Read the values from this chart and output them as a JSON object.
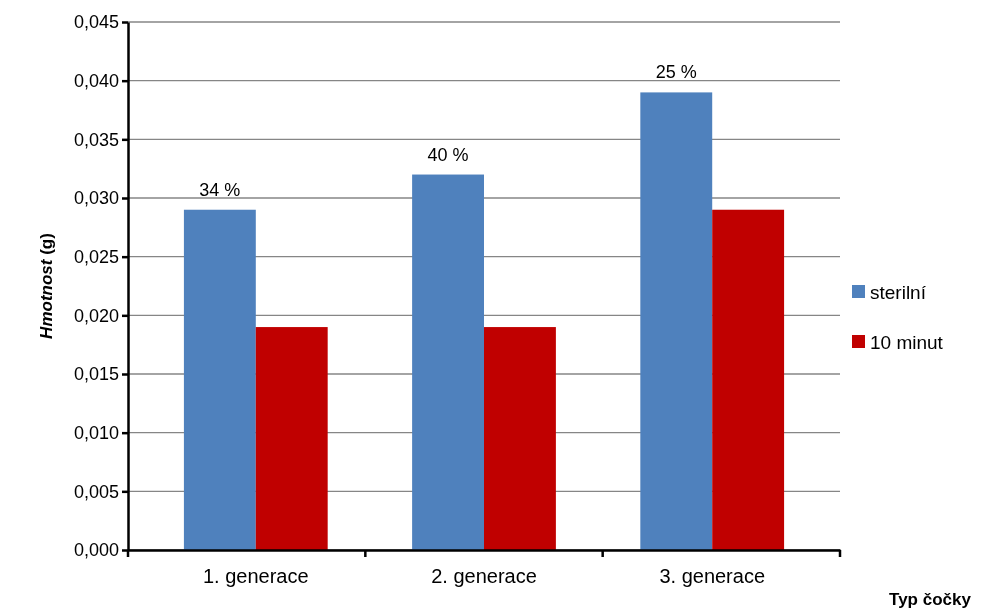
{
  "chart_data": {
    "type": "bar",
    "categories": [
      "1. generace",
      "2. generace",
      "3. generace"
    ],
    "series": [
      {
        "name": "sterilní",
        "color": "#4f81bd",
        "values": [
          0.029,
          0.032,
          0.039
        ]
      },
      {
        "name": "10 minut",
        "color": "#c00000",
        "values": [
          0.019,
          0.019,
          0.029
        ]
      }
    ],
    "ylabel": "Hmotnost (g)",
    "xlabel": "Typ čočky",
    "ylim": [
      0,
      0.045
    ],
    "yticks": [
      {
        "value": 0,
        "label": "0,000"
      },
      {
        "value": 0.005,
        "label": "0,005"
      },
      {
        "value": 0.01,
        "label": "0,010"
      },
      {
        "value": 0.015,
        "label": "0,015"
      },
      {
        "value": 0.02,
        "label": "0,020"
      },
      {
        "value": 0.025,
        "label": "0,025"
      },
      {
        "value": 0.03,
        "label": "0,030"
      },
      {
        "value": 0.035,
        "label": "0,035"
      },
      {
        "value": 0.04,
        "label": "0,040"
      },
      {
        "value": 0.045,
        "label": "0,045"
      }
    ],
    "annotations": [
      {
        "text": "34 %",
        "x": "1. generace",
        "y": 0.029
      },
      {
        "text": "40 %",
        "x": "2. generace",
        "y": 0.032
      },
      {
        "text": "25 %",
        "x": "3. generace",
        "y": 0.039
      }
    ],
    "grid": "y",
    "legend": "right"
  }
}
